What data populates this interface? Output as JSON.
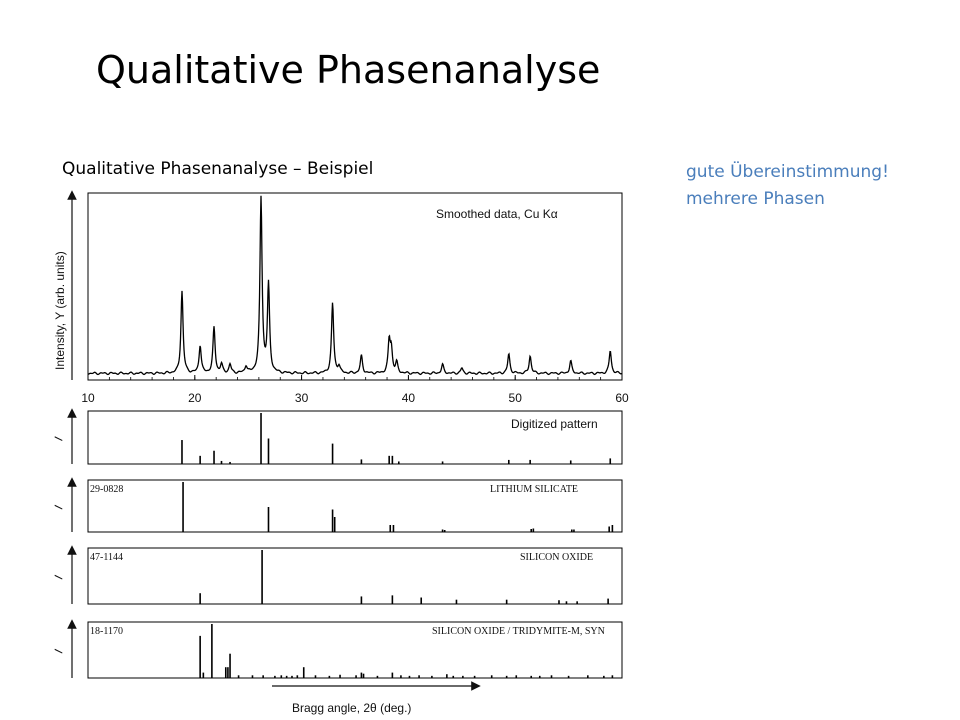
{
  "slide": {
    "title": "Qualitative Phasenanalyse",
    "subtitle": "Qualitative Phasenanalyse – Beispiel",
    "notes": [
      "gute Übereinstimmung!",
      "mehrere Phasen"
    ]
  },
  "colors": {
    "notes": "#4a7ebb",
    "plot": "#000000"
  },
  "chart_data": [
    {
      "type": "line",
      "annotation": "Smoothed data, Cu Kα",
      "ylabel": "Intensity, Y (arb. units)",
      "xlim": [
        10,
        60
      ],
      "x_ticks": [
        10,
        20,
        30,
        40,
        50,
        60
      ],
      "baseline": 1.5,
      "peaks": [
        {
          "x": 18.8,
          "y": 47
        },
        {
          "x": 20.5,
          "y": 16
        },
        {
          "x": 21.8,
          "y": 26
        },
        {
          "x": 22.5,
          "y": 5
        },
        {
          "x": 23.3,
          "y": 5
        },
        {
          "x": 24.8,
          "y": 4
        },
        {
          "x": 26.2,
          "y": 100
        },
        {
          "x": 26.9,
          "y": 50
        },
        {
          "x": 32.9,
          "y": 40
        },
        {
          "x": 33.5,
          "y": 4
        },
        {
          "x": 35.6,
          "y": 10
        },
        {
          "x": 38.2,
          "y": 18
        },
        {
          "x": 38.4,
          "y": 13
        },
        {
          "x": 38.9,
          "y": 6
        },
        {
          "x": 43.2,
          "y": 5
        },
        {
          "x": 45.0,
          "y": 3
        },
        {
          "x": 49.4,
          "y": 11
        },
        {
          "x": 51.4,
          "y": 10
        },
        {
          "x": 55.2,
          "y": 7
        },
        {
          "x": 58.9,
          "y": 13
        }
      ]
    },
    {
      "type": "bar",
      "annotation": "Digitized pattern",
      "ylabel": "I",
      "xlim": [
        10,
        60
      ],
      "sticks": [
        {
          "x": 18.8,
          "y": 47
        },
        {
          "x": 20.5,
          "y": 16
        },
        {
          "x": 21.8,
          "y": 26
        },
        {
          "x": 22.5,
          "y": 6
        },
        {
          "x": 23.3,
          "y": 4
        },
        {
          "x": 26.2,
          "y": 100
        },
        {
          "x": 26.9,
          "y": 50
        },
        {
          "x": 32.9,
          "y": 40
        },
        {
          "x": 35.6,
          "y": 9
        },
        {
          "x": 38.2,
          "y": 16
        },
        {
          "x": 38.5,
          "y": 16
        },
        {
          "x": 39.1,
          "y": 5
        },
        {
          "x": 43.2,
          "y": 5
        },
        {
          "x": 49.4,
          "y": 8
        },
        {
          "x": 51.4,
          "y": 8
        },
        {
          "x": 55.2,
          "y": 7
        },
        {
          "x": 58.9,
          "y": 11
        }
      ]
    },
    {
      "type": "bar",
      "card": "29-0828",
      "annotation": "LITHIUM SILICATE",
      "ylabel": "I",
      "xlim": [
        10,
        60
      ],
      "sticks": [
        {
          "x": 18.9,
          "y": 100
        },
        {
          "x": 26.9,
          "y": 50
        },
        {
          "x": 32.9,
          "y": 45
        },
        {
          "x": 33.1,
          "y": 30
        },
        {
          "x": 38.3,
          "y": 14
        },
        {
          "x": 38.6,
          "y": 14
        },
        {
          "x": 43.2,
          "y": 5
        },
        {
          "x": 43.4,
          "y": 4
        },
        {
          "x": 51.5,
          "y": 6
        },
        {
          "x": 51.7,
          "y": 7
        },
        {
          "x": 55.3,
          "y": 5
        },
        {
          "x": 55.5,
          "y": 5
        },
        {
          "x": 58.8,
          "y": 11
        },
        {
          "x": 59.1,
          "y": 14
        }
      ]
    },
    {
      "type": "bar",
      "card": "47-1144",
      "annotation": "SILICON OXIDE",
      "ylabel": "I",
      "xlim": [
        10,
        60
      ],
      "sticks": [
        {
          "x": 20.5,
          "y": 20
        },
        {
          "x": 26.3,
          "y": 100
        },
        {
          "x": 35.6,
          "y": 14
        },
        {
          "x": 38.5,
          "y": 16
        },
        {
          "x": 41.2,
          "y": 12
        },
        {
          "x": 44.5,
          "y": 8
        },
        {
          "x": 49.2,
          "y": 8
        },
        {
          "x": 54.1,
          "y": 7
        },
        {
          "x": 54.8,
          "y": 5
        },
        {
          "x": 55.8,
          "y": 5
        },
        {
          "x": 58.7,
          "y": 10
        }
      ]
    },
    {
      "type": "bar",
      "card": "18-1170",
      "annotation": "SILICON OXIDE / TRIDYMITE-M, SYN",
      "ylabel": "I",
      "xlabel": "Bragg angle, 2θ (deg.)",
      "xlim": [
        10,
        60
      ],
      "sticks": [
        {
          "x": 20.5,
          "y": 78
        },
        {
          "x": 20.8,
          "y": 10
        },
        {
          "x": 21.6,
          "y": 100
        },
        {
          "x": 22.9,
          "y": 20
        },
        {
          "x": 23.1,
          "y": 20
        },
        {
          "x": 23.3,
          "y": 45
        },
        {
          "x": 24.1,
          "y": 5
        },
        {
          "x": 25.4,
          "y": 5
        },
        {
          "x": 26.4,
          "y": 5
        },
        {
          "x": 27.5,
          "y": 4
        },
        {
          "x": 28.1,
          "y": 5
        },
        {
          "x": 28.6,
          "y": 4
        },
        {
          "x": 29.1,
          "y": 4
        },
        {
          "x": 29.6,
          "y": 5
        },
        {
          "x": 30.2,
          "y": 20
        },
        {
          "x": 31.3,
          "y": 5
        },
        {
          "x": 32.6,
          "y": 4
        },
        {
          "x": 33.6,
          "y": 6
        },
        {
          "x": 35.1,
          "y": 5
        },
        {
          "x": 35.6,
          "y": 10
        },
        {
          "x": 35.8,
          "y": 8
        },
        {
          "x": 37.1,
          "y": 4
        },
        {
          "x": 38.5,
          "y": 10
        },
        {
          "x": 39.3,
          "y": 5
        },
        {
          "x": 40.1,
          "y": 4
        },
        {
          "x": 41.0,
          "y": 5
        },
        {
          "x": 42.2,
          "y": 4
        },
        {
          "x": 43.6,
          "y": 7
        },
        {
          "x": 44.2,
          "y": 4
        },
        {
          "x": 45.1,
          "y": 4
        },
        {
          "x": 46.2,
          "y": 4
        },
        {
          "x": 47.8,
          "y": 5
        },
        {
          "x": 49.2,
          "y": 4
        },
        {
          "x": 50.1,
          "y": 5
        },
        {
          "x": 51.5,
          "y": 4
        },
        {
          "x": 52.3,
          "y": 4
        },
        {
          "x": 53.4,
          "y": 5
        },
        {
          "x": 55.0,
          "y": 4
        },
        {
          "x": 56.8,
          "y": 5
        },
        {
          "x": 58.3,
          "y": 4
        },
        {
          "x": 59.1,
          "y": 5
        }
      ]
    }
  ]
}
